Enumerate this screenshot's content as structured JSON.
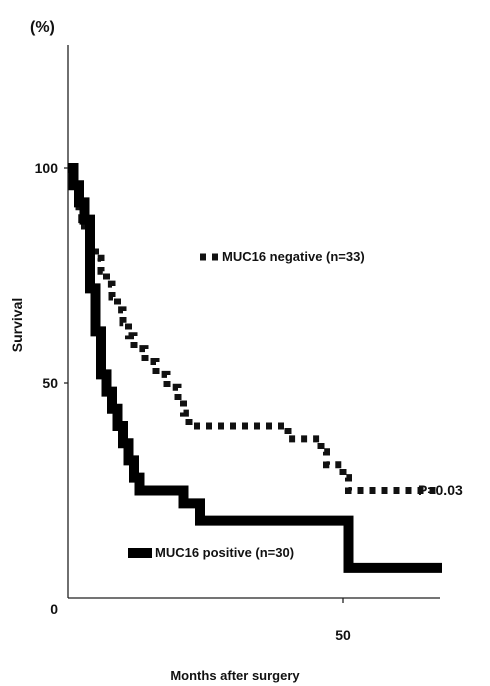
{
  "chart_data": {
    "type": "line",
    "subtype": "kaplan-meier step",
    "title": "",
    "xlabel": "Months after surgery",
    "ylabel": "Survival",
    "y_unit": "(%)",
    "xlim": [
      0,
      68
    ],
    "ylim": [
      0,
      105
    ],
    "x_ticks": [
      {
        "value": 50,
        "label": "50"
      }
    ],
    "y_ticks": [
      {
        "value": 0,
        "label": "0"
      },
      {
        "value": 50,
        "label": "50"
      },
      {
        "value": 100,
        "label": "100"
      }
    ],
    "grid": false,
    "series": [
      {
        "name": "MUC16 negative (n=33)",
        "style": "dashed",
        "color": "#111111",
        "x": [
          0,
          1,
          1.5,
          2,
          2.5,
          3,
          4,
          5,
          6,
          7,
          8,
          9,
          10,
          11,
          12,
          13,
          14,
          16,
          18,
          20,
          21,
          22,
          30,
          40,
          46,
          47,
          50,
          51,
          68
        ],
        "y": [
          100,
          97,
          94,
          91,
          88,
          85,
          82,
          79,
          76,
          73,
          70,
          67,
          64,
          61,
          58,
          58,
          55,
          52,
          49,
          46,
          43,
          40,
          40,
          37,
          34,
          31,
          28,
          25,
          25
        ]
      },
      {
        "name": "MUC16 positive (n=30)",
        "style": "solid",
        "color": "#000000",
        "x": [
          0,
          1,
          2,
          3,
          4,
          5,
          6,
          7,
          8,
          9,
          10,
          11,
          12,
          13,
          14,
          15,
          18,
          21,
          24,
          30,
          40,
          45,
          50,
          51,
          60,
          68
        ],
        "y": [
          100,
          96,
          92,
          88,
          72,
          62,
          52,
          48,
          44,
          40,
          36,
          32,
          28,
          25,
          25,
          25,
          25,
          22,
          18,
          18,
          18,
          18,
          18,
          7,
          7,
          7
        ]
      }
    ],
    "annotations": [
      {
        "text": "P=0.03"
      }
    ]
  }
}
